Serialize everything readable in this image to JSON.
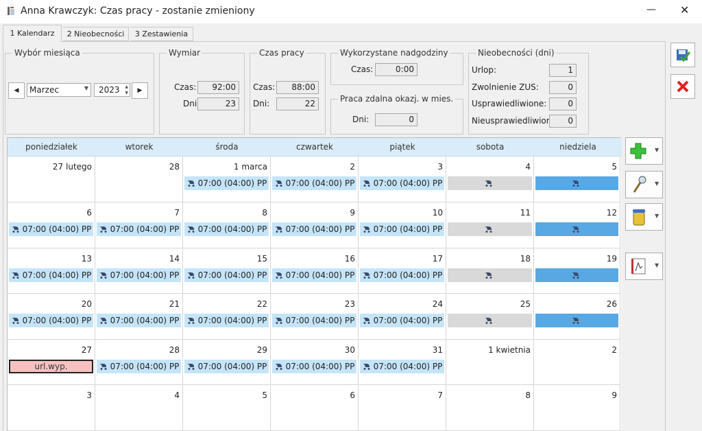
{
  "window": {
    "title": "Anna Krawczyk: Czas pracy - zostanie zmieniony"
  },
  "tabs": [
    "1 Kalendarz",
    "2 Nieobecności",
    "3 Zestawienia"
  ],
  "month_picker": {
    "title": "Wybór miesiąca",
    "month": "Marzec",
    "year": "2023"
  },
  "wymiar": {
    "title": "Wymiar",
    "czas_label": "Czas:",
    "czas": "92:00",
    "dni_label": "Dni:",
    "dni": "23"
  },
  "czas_pracy": {
    "title": "Czas pracy",
    "czas_label": "Czas:",
    "czas": "88:00",
    "dni_label": "Dni:",
    "dni": "22"
  },
  "nadgodziny": {
    "title": "Wykorzystane nadgodziny",
    "czas_label": "Czas:",
    "czas": "0:00"
  },
  "praca_zdalna": {
    "title": "Praca zdalna okazj. w mies.",
    "dni_label": "Dni:",
    "dni": "0"
  },
  "nieobecnosci": {
    "title": "Nieobecności (dni)",
    "rows": [
      [
        "Urlop:",
        "1"
      ],
      [
        "Zwolnienie ZUS:",
        "0"
      ],
      [
        "Usprawiedliwione:",
        "0"
      ],
      [
        "Nieusprawiedliwione:",
        "0"
      ]
    ]
  },
  "calendar": {
    "weekdays": [
      "poniedziałek",
      "wtorek",
      "środa",
      "czwartek",
      "piątek",
      "sobota",
      "niedziela"
    ],
    "weeks": [
      [
        {
          "day": "27 lutego"
        },
        {
          "day": "28"
        },
        {
          "day": "1 marca",
          "entry": "07:00 (04:00) PP",
          "kind": "work"
        },
        {
          "day": "2",
          "entry": "07:00 (04:00) PP",
          "kind": "work"
        },
        {
          "day": "3",
          "entry": "07:00 (04:00) PP",
          "kind": "work"
        },
        {
          "day": "4",
          "kind": "saturday"
        },
        {
          "day": "5",
          "kind": "sunday"
        }
      ],
      [
        {
          "day": "6",
          "entry": "07:00 (04:00) PP",
          "kind": "work"
        },
        {
          "day": "7",
          "entry": "07:00 (04:00) PP",
          "kind": "work"
        },
        {
          "day": "8",
          "entry": "07:00 (04:00) PP",
          "kind": "work"
        },
        {
          "day": "9",
          "entry": "07:00 (04:00) PP",
          "kind": "work"
        },
        {
          "day": "10",
          "entry": "07:00 (04:00) PP",
          "kind": "work"
        },
        {
          "day": "11",
          "kind": "saturday"
        },
        {
          "day": "12",
          "kind": "sunday"
        }
      ],
      [
        {
          "day": "13",
          "entry": "07:00 (04:00) PP",
          "kind": "work"
        },
        {
          "day": "14",
          "entry": "07:00 (04:00) PP",
          "kind": "work"
        },
        {
          "day": "15",
          "entry": "07:00 (04:00) PP",
          "kind": "work"
        },
        {
          "day": "16",
          "entry": "07:00 (04:00) PP",
          "kind": "work"
        },
        {
          "day": "17",
          "entry": "07:00 (04:00) PP",
          "kind": "work"
        },
        {
          "day": "18",
          "kind": "saturday"
        },
        {
          "day": "19",
          "kind": "sunday"
        }
      ],
      [
        {
          "day": "20",
          "entry": "07:00 (04:00) PP",
          "kind": "work"
        },
        {
          "day": "21",
          "entry": "07:00 (04:00) PP",
          "kind": "work"
        },
        {
          "day": "22",
          "entry": "07:00 (04:00) PP",
          "kind": "work"
        },
        {
          "day": "23",
          "entry": "07:00 (04:00) PP",
          "kind": "work"
        },
        {
          "day": "24",
          "entry": "07:00 (04:00) PP",
          "kind": "work"
        },
        {
          "day": "25",
          "kind": "saturday"
        },
        {
          "day": "26",
          "kind": "sunday"
        }
      ],
      [
        {
          "day": "27",
          "entry": "url.wyp.",
          "kind": "leave"
        },
        {
          "day": "28",
          "entry": "07:00 (04:00) PP",
          "kind": "work"
        },
        {
          "day": "29",
          "entry": "07:00 (04:00) PP",
          "kind": "work"
        },
        {
          "day": "30",
          "entry": "07:00 (04:00) PP",
          "kind": "work"
        },
        {
          "day": "31",
          "entry": "07:00 (04:00) PP",
          "kind": "work"
        },
        {
          "day": "1 kwietnia"
        },
        {
          "day": "2"
        }
      ],
      [
        {
          "day": "3"
        },
        {
          "day": "4"
        },
        {
          "day": "5"
        },
        {
          "day": "6"
        },
        {
          "day": "7"
        },
        {
          "day": "8"
        },
        {
          "day": "9"
        }
      ]
    ]
  }
}
